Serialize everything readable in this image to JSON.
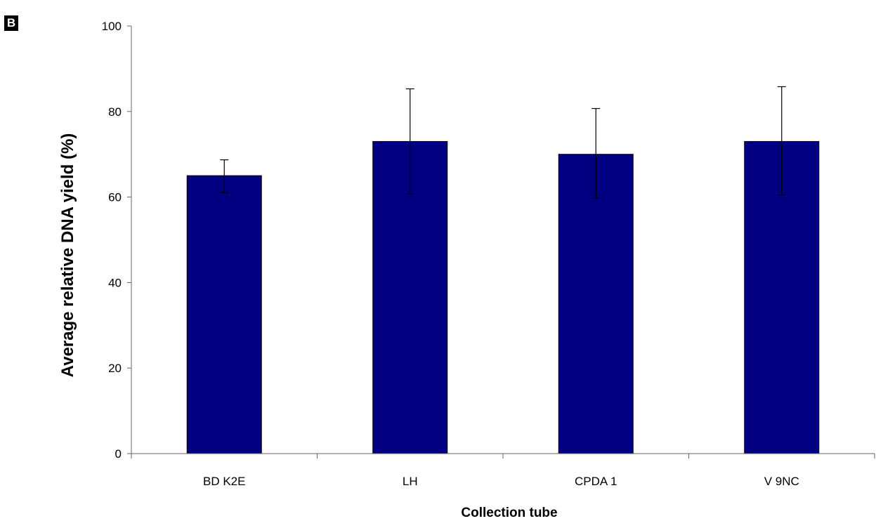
{
  "panel_label": "B",
  "colors": {
    "bar": "#000080",
    "bar_stroke": "#000000",
    "axis": "#666666",
    "text": "#000000"
  },
  "chart_data": {
    "type": "bar",
    "title": "",
    "xlabel": "Collection tube",
    "ylabel": "Average relative DNA yield (%)",
    "categories": [
      "BD K2E",
      "LH",
      "CPDA 1",
      "V 9NC"
    ],
    "values": [
      65,
      73,
      70,
      73
    ],
    "error_bars": [
      {
        "low": 61,
        "high": 68.7
      },
      {
        "low": 60.8,
        "high": 85.3
      },
      {
        "low": 59.8,
        "high": 80.7
      },
      {
        "low": 60.5,
        "high": 85.8
      }
    ],
    "ylim": [
      0,
      100
    ],
    "yticks": [
      0,
      20,
      40,
      60,
      80,
      100
    ],
    "grid": false,
    "legend": "none"
  }
}
